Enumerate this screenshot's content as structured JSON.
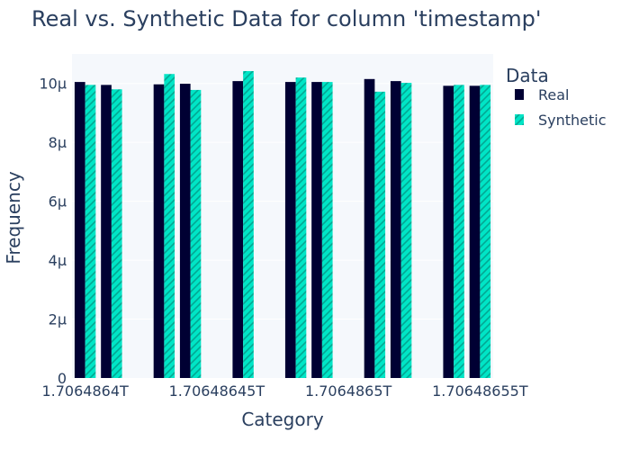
{
  "chart_data": {
    "type": "bar",
    "title": "Real vs. Synthetic Data for column 'timestamp'",
    "xlabel": "Category",
    "ylabel": "Frequency",
    "ylim": [
      0,
      11
    ],
    "y_ticks": [
      0,
      2,
      4,
      6,
      8,
      10
    ],
    "y_tick_labels": [
      "0",
      "2µ",
      "4µ",
      "6µ",
      "8µ",
      "10µ"
    ],
    "x_ticks": [
      0,
      1,
      2,
      3
    ],
    "x_tick_labels": [
      "1.7064864T",
      "1.70648645T",
      "1.7064865T",
      "1.70648655T"
    ],
    "xlim": [
      -0.1,
      3.1
    ],
    "grid": true,
    "legend": {
      "title": "Data",
      "position": "top-right"
    },
    "categories": [
      0.0,
      0.2,
      0.6,
      0.8,
      1.2,
      1.6,
      1.8,
      2.2,
      2.4,
      2.8,
      3.0
    ],
    "series": [
      {
        "name": "Real",
        "color": "#000033",
        "pattern": "solid",
        "values": [
          10.05,
          9.95,
          9.97,
          9.99,
          10.08,
          10.05,
          10.05,
          10.15,
          10.08,
          9.92,
          9.92
        ]
      },
      {
        "name": "Synthetic",
        "color": "#00e5c6",
        "pattern": "hatched",
        "values": [
          9.95,
          9.8,
          10.32,
          9.78,
          10.42,
          10.2,
          10.05,
          9.72,
          10.02,
          9.95,
          9.95
        ]
      }
    ]
  }
}
